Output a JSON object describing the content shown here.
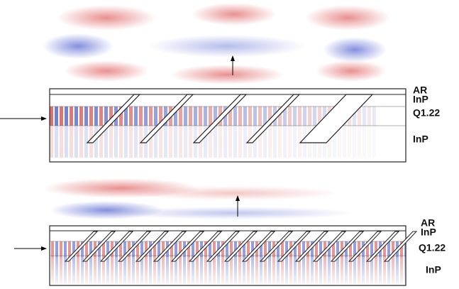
{
  "panels": [
    {
      "labels": [
        "AR",
        "InP",
        "Q1.22",
        "InP"
      ]
    },
    {
      "labels": [
        "AR",
        "InP",
        "Q1.22",
        "InP"
      ]
    }
  ]
}
